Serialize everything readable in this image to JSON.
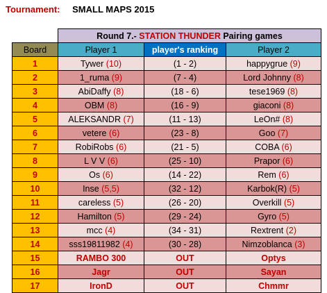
{
  "header": {
    "label": "Tournament:",
    "name": "SMALL MAPS 2015"
  },
  "round": {
    "prefix": "Round 7.- ",
    "map": "STATION THUNDER",
    "suffix": " Pairing games"
  },
  "columns": {
    "board": "Board",
    "player1": "Player 1",
    "ranking": "player's ranking",
    "player2": "Player 2"
  },
  "rows": [
    {
      "board": "1",
      "p1": "Tywer",
      "p1s": "(10)",
      "rank": "(1 - 2)",
      "p2": "happygrue",
      "p2s": "(9)"
    },
    {
      "board": "2",
      "p1": "1_ruma",
      "p1s": "(9)",
      "rank": "(7 - 4)",
      "p2": "Lord Johnny",
      "p2s": "(8)"
    },
    {
      "board": "3",
      "p1": "AbiDaffy",
      "p1s": "(8)",
      "rank": "(18 - 6)",
      "p2": "tese1969",
      "p2s": "(8)"
    },
    {
      "board": "4",
      "p1": "OBM",
      "p1s": "(8)",
      "rank": "(16 - 9)",
      "p2": "giaconi",
      "p2s": "(8)"
    },
    {
      "board": "5",
      "p1": "ALEKSANDR",
      "p1s": "(7)",
      "rank": "(11 - 13)",
      "p2": "LeOn#",
      "p2s": "(8)"
    },
    {
      "board": "6",
      "p1": "vetere",
      "p1s": "(6)",
      "rank": "(23 - 8)",
      "p2": "Goo",
      "p2s": "(7)"
    },
    {
      "board": "7",
      "p1": "RobiRobs",
      "p1s": "(6)",
      "rank": "(21 - 5)",
      "p2": "COBA",
      "p2s": "(6)"
    },
    {
      "board": "8",
      "p1": "L V V",
      "p1s": "(6)",
      "rank": "(25 - 10)",
      "p2": "Prapor",
      "p2s": "(6)"
    },
    {
      "board": "9",
      "p1": "Os",
      "p1s": "(6)",
      "rank": "(14 - 22)",
      "p2": "Rem",
      "p2s": "(6)"
    },
    {
      "board": "10",
      "p1": "Inse",
      "p1s": "(5,5)",
      "rank": "(32 - 12)",
      "p2": "Karbok(R)",
      "p2s": "(5)"
    },
    {
      "board": "11",
      "p1": "careless",
      "p1s": "(5)",
      "rank": "(26 - 20)",
      "p2": "Overkill",
      "p2s": "(5)"
    },
    {
      "board": "12",
      "p1": "Hamilton",
      "p1s": "(5)",
      "rank": "(29 - 24)",
      "p2": "Gyro",
      "p2s": "(5)"
    },
    {
      "board": "13",
      "p1": "mcc",
      "p1s": "(4)",
      "rank": "(34 - 31)",
      "p2": "Rextrent",
      "p2s": "(2)"
    },
    {
      "board": "14",
      "p1": "sss19811982",
      "p1s": "(4)",
      "rank": "(30 - 28)",
      "p2": "Nimzoblanca",
      "p2s": "(3)"
    },
    {
      "board": "15",
      "p1": "RAMBO 300",
      "p1s": "",
      "rank": "OUT",
      "p2": "Optys",
      "p2s": ""
    },
    {
      "board": "16",
      "p1": "Jagr",
      "p1s": "",
      "rank": "OUT",
      "p2": "Sayan",
      "p2s": ""
    },
    {
      "board": "17",
      "p1": "IronD",
      "p1s": "",
      "rank": "OUT",
      "p2": "Chmmr",
      "p2s": ""
    }
  ]
}
